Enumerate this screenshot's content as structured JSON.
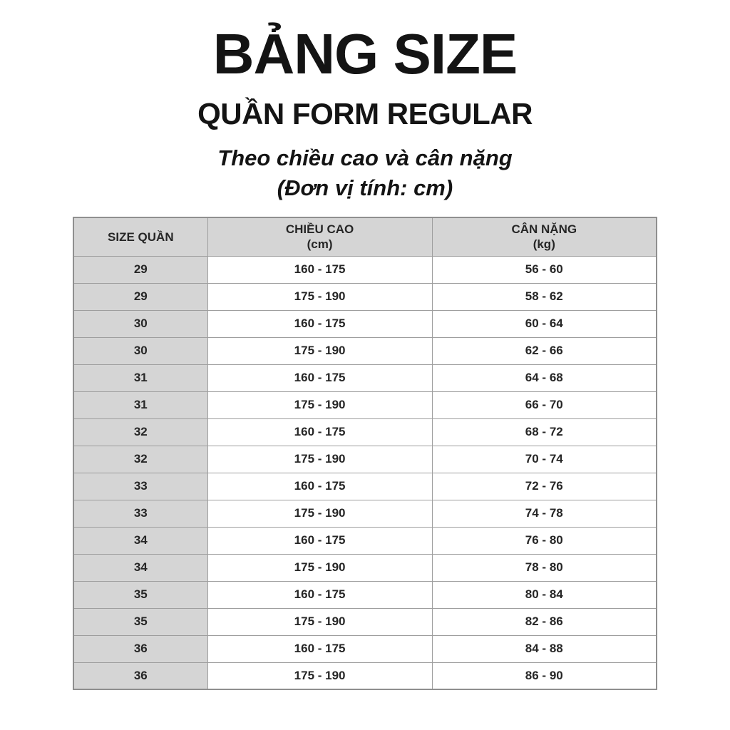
{
  "header": {
    "title": "BẢNG SIZE",
    "subtitle": "QUẦN FORM REGULAR",
    "tagline": "Theo chiều cao và cân nặng",
    "unit_note": "(Đơn vị tính: cm)"
  },
  "table": {
    "columns": [
      "SIZE QUẦN",
      "CHIỀU CAO",
      "CÂN NẶNG"
    ],
    "units": [
      "",
      "(cm)",
      "(kg)"
    ],
    "rows": [
      [
        "29",
        "160 - 175",
        "56 - 60"
      ],
      [
        "29",
        "175 - 190",
        "58 - 62"
      ],
      [
        "30",
        "160 - 175",
        "60 - 64"
      ],
      [
        "30",
        "175 - 190",
        "62 - 66"
      ],
      [
        "31",
        "160 - 175",
        "64 - 68"
      ],
      [
        "31",
        "175 - 190",
        "66 - 70"
      ],
      [
        "32",
        "160 - 175",
        "68 - 72"
      ],
      [
        "32",
        "175 - 190",
        "70 - 74"
      ],
      [
        "33",
        "160 - 175",
        "72 - 76"
      ],
      [
        "33",
        "175 - 190",
        "74 - 78"
      ],
      [
        "34",
        "160 - 175",
        "76 - 80"
      ],
      [
        "34",
        "175 - 190",
        "78 - 80"
      ],
      [
        "35",
        "160 - 175",
        "80 - 84"
      ],
      [
        "35",
        "175 - 190",
        "82 - 86"
      ],
      [
        "36",
        "160 - 175",
        "84 - 88"
      ],
      [
        "36",
        "175 - 190",
        "86 - 90"
      ]
    ]
  },
  "colors": {
    "cell_gray": "#d5d5d5",
    "border_gray": "#9e9e9e",
    "text": "#1c1c1c",
    "background": "#ffffff"
  }
}
